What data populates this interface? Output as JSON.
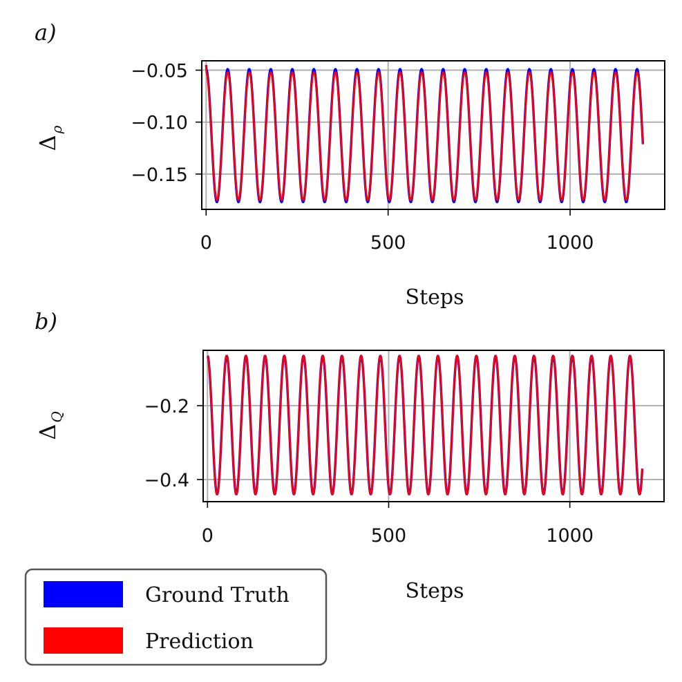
{
  "chart_data": [
    {
      "panel_label": "a)",
      "type": "line",
      "ylabel_main": "Δ",
      "ylabel_sub": "ρ",
      "xlabel": "Steps",
      "xlim": [
        -12,
        1260
      ],
      "ylim": [
        -0.184,
        -0.041
      ],
      "xticks": [
        0,
        500,
        1000
      ],
      "xtick_labels": [
        "0",
        "500",
        "1000"
      ],
      "yticks": [
        -0.05,
        -0.1,
        -0.15
      ],
      "ytick_labels": [
        "−0.05",
        "−0.10",
        "−0.15"
      ],
      "grid": true,
      "series": [
        {
          "name": "Ground Truth",
          "color": "#0000ff",
          "start": -0.045,
          "min": -0.177,
          "max": -0.049,
          "period": 59.2,
          "end_x": 1200
        },
        {
          "name": "Prediction",
          "color": "#ff0000",
          "start": -0.045,
          "min": -0.175,
          "max": -0.052,
          "period": 59.2,
          "end_x": 1200
        }
      ]
    },
    {
      "panel_label": "b)",
      "type": "line",
      "ylabel_main": "Δ",
      "ylabel_sub": "Q",
      "xlabel": "Steps",
      "xlim": [
        -12,
        1260
      ],
      "ylim": [
        -0.46,
        -0.05
      ],
      "xticks": [
        0,
        500,
        1000
      ],
      "xtick_labels": [
        "0",
        "500",
        "1000"
      ],
      "yticks": [
        -0.2,
        -0.4
      ],
      "ytick_labels": [
        "−0.2",
        "−0.4"
      ],
      "grid": true,
      "series": [
        {
          "name": "Ground Truth",
          "color": "#0000ff",
          "start": -0.065,
          "min": -0.44,
          "max": -0.065,
          "period": 53.0,
          "end_x": 1200
        },
        {
          "name": "Prediction",
          "color": "#ff0000",
          "start": -0.065,
          "min": -0.44,
          "max": -0.065,
          "period": 53.0,
          "end_x": 1200
        }
      ]
    }
  ],
  "legend": {
    "placement": "bottom-left",
    "entries": [
      {
        "label": "Ground Truth",
        "color": "#0000ff"
      },
      {
        "label": "Prediction",
        "color": "#ff0000"
      }
    ]
  }
}
